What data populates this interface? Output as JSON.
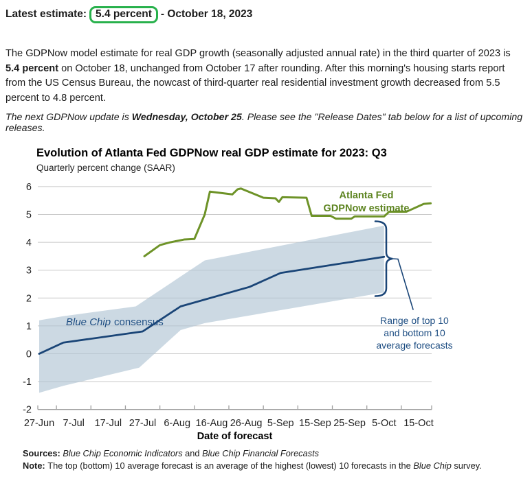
{
  "page": {
    "latest_label": "Latest estimate:",
    "latest_value": "5.4 percent",
    "latest_suffix": "- October 18, 2023",
    "highlight_color": "#28b14c",
    "intro": {
      "pre": "The GDPNow model estimate for real GDP growth (seasonally adjusted annual rate) in the third quarter of 2023 is ",
      "bold": "5.4 percent",
      "post": " on October 18, unchanged from October 17 after rounding. After this morning's housing starts report from the US Census Bureau, the nowcast of third-quarter real residential investment growth decreased from 5.5 percent to 4.8 percent."
    },
    "next_update": {
      "pre": "The next GDPNow update is ",
      "bold": "Wednesday, October 25",
      "post": ". Please see the \"Release Dates\" tab below for a list of upcoming releases."
    },
    "sources": {
      "label": "Sources: ",
      "italic1": "Blue Chip Economic Indicators",
      "mid": " and ",
      "italic2": "Blue Chip Financial Forecasts"
    },
    "note": {
      "label": "Note: ",
      "pre": "The top (bottom) 10 average forecast is an average of the highest (lowest) 10 forecasts in the ",
      "italic": "Blue Chip",
      "post": " survey."
    }
  },
  "chart_data": {
    "type": "line",
    "title": "Evolution of Atlanta Fed GDPNow real GDP estimate for 2023: Q3",
    "subtitle": "Quarterly percent change (SAAR)",
    "xlabel": "Date of forecast",
    "ylim": [
      -2,
      6
    ],
    "grid": true,
    "x_unit_days_from": "27-Jun-2023",
    "x_ticks": [
      {
        "day": 0,
        "label": "27-Jun"
      },
      {
        "day": 10,
        "label": "7-Jul"
      },
      {
        "day": 20,
        "label": "17-Jul"
      },
      {
        "day": 30,
        "label": "27-Jul"
      },
      {
        "day": 40,
        "label": "6-Aug"
      },
      {
        "day": 50,
        "label": "16-Aug"
      },
      {
        "day": 60,
        "label": "26-Aug"
      },
      {
        "day": 70,
        "label": "5-Sep"
      },
      {
        "day": 80,
        "label": "15-Sep"
      },
      {
        "day": 90,
        "label": "25-Sep"
      },
      {
        "day": 100,
        "label": "5-Oct"
      },
      {
        "day": 110,
        "label": "15-Oct"
      }
    ],
    "colors": {
      "green_line": "#6e9328",
      "green_text": "#5d8420",
      "navy_line": "#1a4577",
      "navy_text": "#1d4d82",
      "band": "rgba(176,197,212,0.65)",
      "grid": "#c7c7c7",
      "axis": "#9e9e9e"
    },
    "series": [
      {
        "id": "blue-chip-consensus",
        "name": "Blue Chip consensus",
        "color": "#1a4577",
        "width": 2.8,
        "points": [
          [
            0,
            0.0
          ],
          [
            7,
            0.4
          ],
          [
            30,
            0.8
          ],
          [
            41,
            1.7
          ],
          [
            61,
            2.4
          ],
          [
            70,
            2.9
          ],
          [
            100,
            3.48
          ]
        ]
      },
      {
        "id": "gdpnow-estimate",
        "name": "Atlanta Fed GDPNow estimate",
        "color": "#6e9328",
        "width": 3,
        "points": [
          [
            30.5,
            3.5
          ],
          [
            35,
            3.9
          ],
          [
            38,
            4.0
          ],
          [
            42,
            4.1
          ],
          [
            45,
            4.12
          ],
          [
            48,
            5.0
          ],
          [
            49.5,
            5.82
          ],
          [
            56,
            5.72
          ],
          [
            57.5,
            5.9
          ],
          [
            58.5,
            5.93
          ],
          [
            65,
            5.6
          ],
          [
            68.5,
            5.58
          ],
          [
            69.5,
            5.45
          ],
          [
            70.5,
            5.62
          ],
          [
            77.5,
            5.6
          ],
          [
            79,
            4.95
          ],
          [
            84.5,
            4.95
          ],
          [
            86,
            4.85
          ],
          [
            90.5,
            4.85
          ],
          [
            91.5,
            4.93
          ],
          [
            100,
            4.93
          ],
          [
            101.5,
            5.1
          ],
          [
            106.5,
            5.1
          ],
          [
            111.5,
            5.38
          ],
          [
            113.5,
            5.4
          ]
        ]
      }
    ],
    "band": {
      "name": "Range of top 10 and bottom 10 average forecasts",
      "top": [
        [
          0,
          1.2
        ],
        [
          7,
          1.35
        ],
        [
          28,
          1.7
        ],
        [
          48,
          3.35
        ],
        [
          100,
          4.6
        ]
      ],
      "bottom": [
        [
          0,
          -1.4
        ],
        [
          7,
          -1.15
        ],
        [
          29,
          -0.5
        ],
        [
          41,
          0.85
        ],
        [
          48,
          1.1
        ],
        [
          100,
          2.2
        ]
      ]
    },
    "annotations": {
      "gdpnow_label_line1": "Atlanta Fed",
      "gdpnow_label_line2": "GDPNow estimate",
      "bluechip_label_italic": "Blue Chip",
      "bluechip_label_rest": "consensus",
      "range_label_line1": "Range of top 10",
      "range_label_line2": "and bottom 10",
      "range_label_line3": "average forecasts"
    }
  }
}
